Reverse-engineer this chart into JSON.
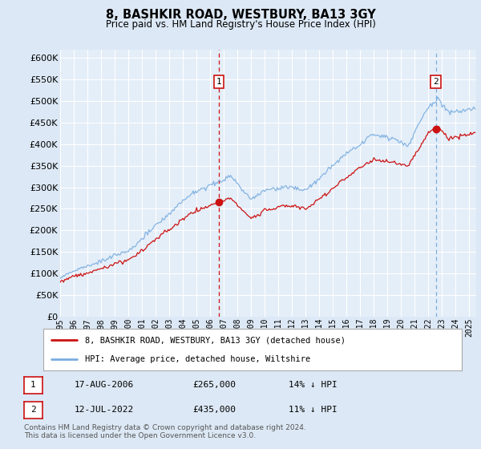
{
  "title": "8, BASHKIR ROAD, WESTBURY, BA13 3GY",
  "subtitle": "Price paid vs. HM Land Registry's House Price Index (HPI)",
  "ylim": [
    0,
    620000
  ],
  "xlim_start": 1995.0,
  "xlim_end": 2025.5,
  "background_color": "#dce8f5",
  "plot_bg_color": "#e4eef8",
  "grid_color": "#ffffff",
  "hpi_color": "#7aade0",
  "price_color": "#cc1111",
  "transaction1": {
    "date": "17-AUG-2006",
    "price": 265000,
    "label": "1",
    "year": 2006.625
  },
  "transaction2": {
    "date": "12-JUL-2022",
    "price": 435000,
    "label": "2",
    "year": 2022.54
  },
  "legend_label_price": "8, BASHKIR ROAD, WESTBURY, BA13 3GY (detached house)",
  "legend_label_hpi": "HPI: Average price, detached house, Wiltshire",
  "footer1": "Contains HM Land Registry data © Crown copyright and database right 2024.",
  "footer2": "This data is licensed under the Open Government Licence v3.0.",
  "table_row1": [
    "1",
    "17-AUG-2006",
    "£265,000",
    "14% ↓ HPI"
  ],
  "table_row2": [
    "2",
    "12-JUL-2022",
    "£435,000",
    "11% ↓ HPI"
  ]
}
